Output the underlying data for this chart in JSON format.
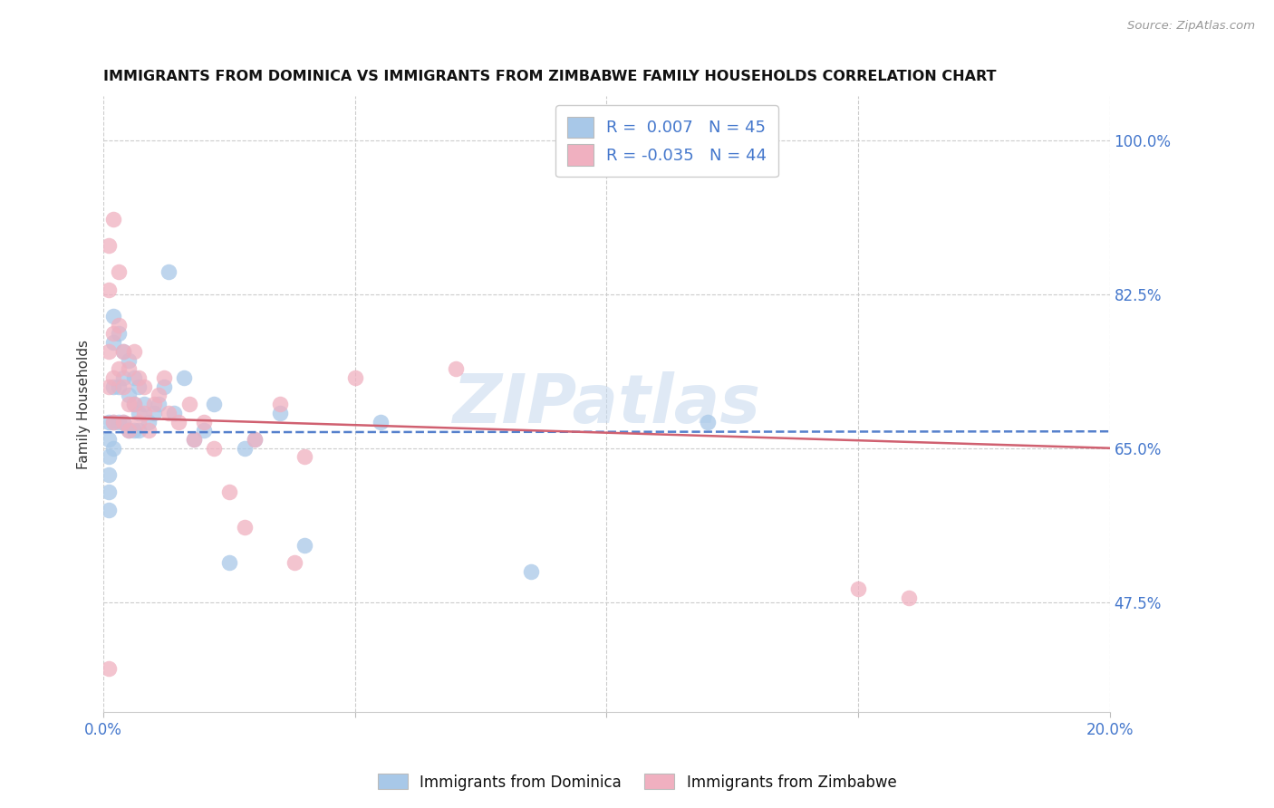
{
  "title": "IMMIGRANTS FROM DOMINICA VS IMMIGRANTS FROM ZIMBABWE FAMILY HOUSEHOLDS CORRELATION CHART",
  "source": "Source: ZipAtlas.com",
  "ylabel": "Family Households",
  "xlim": [
    0.0,
    0.2
  ],
  "ylim": [
    0.35,
    1.05
  ],
  "ytick_positions": [
    0.475,
    0.65,
    0.825,
    1.0
  ],
  "ytick_labels": [
    "47.5%",
    "65.0%",
    "82.5%",
    "100.0%"
  ],
  "xtick_positions": [
    0.0,
    0.05,
    0.1,
    0.15,
    0.2
  ],
  "xtick_labels": [
    "0.0%",
    "",
    "",
    "",
    "20.0%"
  ],
  "legend_labels": [
    "Immigrants from Dominica",
    "Immigrants from Zimbabwe"
  ],
  "dominica_color": "#a8c8e8",
  "zimbabwe_color": "#f0b0c0",
  "dominica_line_color": "#5580cc",
  "zimbabwe_line_color": "#d06070",
  "dominica_R": 0.007,
  "dominica_N": 45,
  "zimbabwe_R": -0.035,
  "zimbabwe_N": 44,
  "watermark": "ZIPatlas",
  "dominica_x": [
    0.001,
    0.001,
    0.001,
    0.001,
    0.001,
    0.001,
    0.002,
    0.002,
    0.002,
    0.002,
    0.002,
    0.003,
    0.003,
    0.003,
    0.004,
    0.004,
    0.004,
    0.005,
    0.005,
    0.005,
    0.006,
    0.006,
    0.006,
    0.007,
    0.007,
    0.007,
    0.008,
    0.009,
    0.01,
    0.011,
    0.012,
    0.013,
    0.014,
    0.016,
    0.018,
    0.02,
    0.022,
    0.025,
    0.028,
    0.03,
    0.035,
    0.04,
    0.055,
    0.085,
    0.12
  ],
  "dominica_y": [
    0.68,
    0.66,
    0.64,
    0.62,
    0.6,
    0.58,
    0.8,
    0.77,
    0.72,
    0.68,
    0.65,
    0.78,
    0.72,
    0.68,
    0.76,
    0.73,
    0.68,
    0.75,
    0.71,
    0.67,
    0.73,
    0.7,
    0.67,
    0.72,
    0.69,
    0.67,
    0.7,
    0.68,
    0.69,
    0.7,
    0.72,
    0.85,
    0.69,
    0.73,
    0.66,
    0.67,
    0.7,
    0.52,
    0.65,
    0.66,
    0.69,
    0.54,
    0.68,
    0.51,
    0.68
  ],
  "zimbabwe_x": [
    0.001,
    0.001,
    0.001,
    0.001,
    0.001,
    0.002,
    0.002,
    0.002,
    0.002,
    0.003,
    0.003,
    0.003,
    0.004,
    0.004,
    0.004,
    0.005,
    0.005,
    0.005,
    0.006,
    0.006,
    0.007,
    0.007,
    0.008,
    0.008,
    0.009,
    0.01,
    0.011,
    0.012,
    0.013,
    0.015,
    0.017,
    0.018,
    0.02,
    0.022,
    0.025,
    0.028,
    0.03,
    0.035,
    0.038,
    0.04,
    0.05,
    0.07,
    0.15,
    0.16
  ],
  "zimbabwe_y": [
    0.88,
    0.83,
    0.76,
    0.72,
    0.4,
    0.91,
    0.78,
    0.73,
    0.68,
    0.85,
    0.79,
    0.74,
    0.76,
    0.72,
    0.68,
    0.74,
    0.7,
    0.67,
    0.76,
    0.7,
    0.73,
    0.68,
    0.72,
    0.69,
    0.67,
    0.7,
    0.71,
    0.73,
    0.69,
    0.68,
    0.7,
    0.66,
    0.68,
    0.65,
    0.6,
    0.56,
    0.66,
    0.7,
    0.52,
    0.64,
    0.73,
    0.74,
    0.49,
    0.48
  ]
}
